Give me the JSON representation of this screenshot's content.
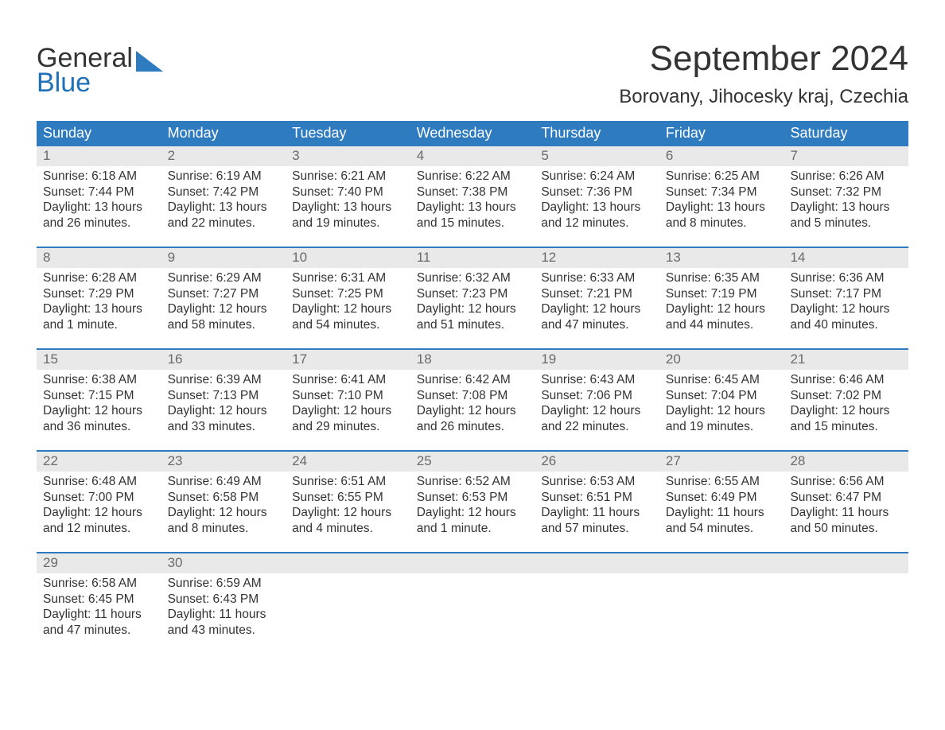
{
  "brand": {
    "line1": "General",
    "line2": "Blue",
    "shape_color": "#2f7bbf",
    "text_color_primary": "#333333",
    "text_color_accent": "#2070b8"
  },
  "title": "September 2024",
  "location": "Borovany, Jihocesky kraj, Czechia",
  "colors": {
    "header_bg": "#2f7bbf",
    "header_text": "#ffffff",
    "daynum_bg": "#e9e9e9",
    "daynum_text": "#6a6a6a",
    "body_text": "#333333",
    "week_border": "#2f7bbf",
    "page_bg": "#ffffff"
  },
  "days_of_week": [
    "Sunday",
    "Monday",
    "Tuesday",
    "Wednesday",
    "Thursday",
    "Friday",
    "Saturday"
  ],
  "weeks": [
    [
      {
        "n": "1",
        "sunrise": "Sunrise: 6:18 AM",
        "sunset": "Sunset: 7:44 PM",
        "daylight": "Daylight: 13 hours and 26 minutes."
      },
      {
        "n": "2",
        "sunrise": "Sunrise: 6:19 AM",
        "sunset": "Sunset: 7:42 PM",
        "daylight": "Daylight: 13 hours and 22 minutes."
      },
      {
        "n": "3",
        "sunrise": "Sunrise: 6:21 AM",
        "sunset": "Sunset: 7:40 PM",
        "daylight": "Daylight: 13 hours and 19 minutes."
      },
      {
        "n": "4",
        "sunrise": "Sunrise: 6:22 AM",
        "sunset": "Sunset: 7:38 PM",
        "daylight": "Daylight: 13 hours and 15 minutes."
      },
      {
        "n": "5",
        "sunrise": "Sunrise: 6:24 AM",
        "sunset": "Sunset: 7:36 PM",
        "daylight": "Daylight: 13 hours and 12 minutes."
      },
      {
        "n": "6",
        "sunrise": "Sunrise: 6:25 AM",
        "sunset": "Sunset: 7:34 PM",
        "daylight": "Daylight: 13 hours and 8 minutes."
      },
      {
        "n": "7",
        "sunrise": "Sunrise: 6:26 AM",
        "sunset": "Sunset: 7:32 PM",
        "daylight": "Daylight: 13 hours and 5 minutes."
      }
    ],
    [
      {
        "n": "8",
        "sunrise": "Sunrise: 6:28 AM",
        "sunset": "Sunset: 7:29 PM",
        "daylight": "Daylight: 13 hours and 1 minute."
      },
      {
        "n": "9",
        "sunrise": "Sunrise: 6:29 AM",
        "sunset": "Sunset: 7:27 PM",
        "daylight": "Daylight: 12 hours and 58 minutes."
      },
      {
        "n": "10",
        "sunrise": "Sunrise: 6:31 AM",
        "sunset": "Sunset: 7:25 PM",
        "daylight": "Daylight: 12 hours and 54 minutes."
      },
      {
        "n": "11",
        "sunrise": "Sunrise: 6:32 AM",
        "sunset": "Sunset: 7:23 PM",
        "daylight": "Daylight: 12 hours and 51 minutes."
      },
      {
        "n": "12",
        "sunrise": "Sunrise: 6:33 AM",
        "sunset": "Sunset: 7:21 PM",
        "daylight": "Daylight: 12 hours and 47 minutes."
      },
      {
        "n": "13",
        "sunrise": "Sunrise: 6:35 AM",
        "sunset": "Sunset: 7:19 PM",
        "daylight": "Daylight: 12 hours and 44 minutes."
      },
      {
        "n": "14",
        "sunrise": "Sunrise: 6:36 AM",
        "sunset": "Sunset: 7:17 PM",
        "daylight": "Daylight: 12 hours and 40 minutes."
      }
    ],
    [
      {
        "n": "15",
        "sunrise": "Sunrise: 6:38 AM",
        "sunset": "Sunset: 7:15 PM",
        "daylight": "Daylight: 12 hours and 36 minutes."
      },
      {
        "n": "16",
        "sunrise": "Sunrise: 6:39 AM",
        "sunset": "Sunset: 7:13 PM",
        "daylight": "Daylight: 12 hours and 33 minutes."
      },
      {
        "n": "17",
        "sunrise": "Sunrise: 6:41 AM",
        "sunset": "Sunset: 7:10 PM",
        "daylight": "Daylight: 12 hours and 29 minutes."
      },
      {
        "n": "18",
        "sunrise": "Sunrise: 6:42 AM",
        "sunset": "Sunset: 7:08 PM",
        "daylight": "Daylight: 12 hours and 26 minutes."
      },
      {
        "n": "19",
        "sunrise": "Sunrise: 6:43 AM",
        "sunset": "Sunset: 7:06 PM",
        "daylight": "Daylight: 12 hours and 22 minutes."
      },
      {
        "n": "20",
        "sunrise": "Sunrise: 6:45 AM",
        "sunset": "Sunset: 7:04 PM",
        "daylight": "Daylight: 12 hours and 19 minutes."
      },
      {
        "n": "21",
        "sunrise": "Sunrise: 6:46 AM",
        "sunset": "Sunset: 7:02 PM",
        "daylight": "Daylight: 12 hours and 15 minutes."
      }
    ],
    [
      {
        "n": "22",
        "sunrise": "Sunrise: 6:48 AM",
        "sunset": "Sunset: 7:00 PM",
        "daylight": "Daylight: 12 hours and 12 minutes."
      },
      {
        "n": "23",
        "sunrise": "Sunrise: 6:49 AM",
        "sunset": "Sunset: 6:58 PM",
        "daylight": "Daylight: 12 hours and 8 minutes."
      },
      {
        "n": "24",
        "sunrise": "Sunrise: 6:51 AM",
        "sunset": "Sunset: 6:55 PM",
        "daylight": "Daylight: 12 hours and 4 minutes."
      },
      {
        "n": "25",
        "sunrise": "Sunrise: 6:52 AM",
        "sunset": "Sunset: 6:53 PM",
        "daylight": "Daylight: 12 hours and 1 minute."
      },
      {
        "n": "26",
        "sunrise": "Sunrise: 6:53 AM",
        "sunset": "Sunset: 6:51 PM",
        "daylight": "Daylight: 11 hours and 57 minutes."
      },
      {
        "n": "27",
        "sunrise": "Sunrise: 6:55 AM",
        "sunset": "Sunset: 6:49 PM",
        "daylight": "Daylight: 11 hours and 54 minutes."
      },
      {
        "n": "28",
        "sunrise": "Sunrise: 6:56 AM",
        "sunset": "Sunset: 6:47 PM",
        "daylight": "Daylight: 11 hours and 50 minutes."
      }
    ],
    [
      {
        "n": "29",
        "sunrise": "Sunrise: 6:58 AM",
        "sunset": "Sunset: 6:45 PM",
        "daylight": "Daylight: 11 hours and 47 minutes."
      },
      {
        "n": "30",
        "sunrise": "Sunrise: 6:59 AM",
        "sunset": "Sunset: 6:43 PM",
        "daylight": "Daylight: 11 hours and 43 minutes."
      },
      {
        "n": "",
        "sunrise": "",
        "sunset": "",
        "daylight": ""
      },
      {
        "n": "",
        "sunrise": "",
        "sunset": "",
        "daylight": ""
      },
      {
        "n": "",
        "sunrise": "",
        "sunset": "",
        "daylight": ""
      },
      {
        "n": "",
        "sunrise": "",
        "sunset": "",
        "daylight": ""
      },
      {
        "n": "",
        "sunrise": "",
        "sunset": "",
        "daylight": ""
      }
    ]
  ]
}
